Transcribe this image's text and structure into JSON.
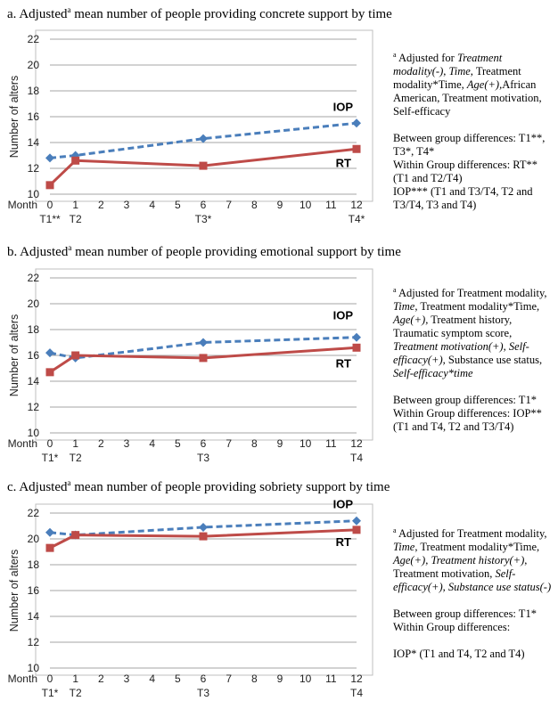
{
  "chart_data": [
    {
      "type": "line",
      "title_prefix": "a. Adjusted",
      "title_sup": "a",
      "title_suffix": " mean number of people providing concrete support by time",
      "ylabel": "Number of alters",
      "xlabel": "Month",
      "ylim": [
        10,
        22
      ],
      "yticks": [
        10,
        12,
        14,
        16,
        18,
        20,
        22
      ],
      "xlim": [
        0,
        12
      ],
      "xticks": [
        0,
        1,
        2,
        3,
        4,
        5,
        6,
        7,
        8,
        9,
        10,
        11,
        12
      ],
      "grid": true,
      "time_labels": [
        {
          "x": 0,
          "label": "T1**"
        },
        {
          "x": 1,
          "label": "T2"
        },
        {
          "x": 6,
          "label": "T3*"
        },
        {
          "x": 12,
          "label": "T4*"
        }
      ],
      "series": [
        {
          "name": "IOP",
          "style": "dashed",
          "color": "#4a7ebb",
          "x": [
            0,
            1,
            6,
            12
          ],
          "y": [
            12.8,
            13.0,
            14.3,
            15.5
          ]
        },
        {
          "name": "RT",
          "style": "solid",
          "color": "#be4b48",
          "x": [
            0,
            1,
            6,
            12
          ],
          "y": [
            10.7,
            12.6,
            12.2,
            13.5
          ]
        }
      ],
      "note_lines": [
        [
          "sup:a",
          " Adjusted for ",
          "i:Treatment modality(-), Time",
          ", Treatment modality*Time, ",
          "i:Age(+),",
          "African American, Treatment motivation, Self-efficacy"
        ],
        [],
        [
          "Between group differences: T1**, T3*, T4*"
        ],
        [
          "Within Group differences: RT** (T1 and T2/T4)"
        ],
        [
          "IOP*** (T1 and T3/T4, T2 and T3/T4, T3 and T4)"
        ]
      ]
    },
    {
      "type": "line",
      "title_prefix": "b. Adjusted",
      "title_sup": "a",
      "title_suffix": " mean number of people providing emotional support by time",
      "ylabel": "Number of alters",
      "xlabel": "Month",
      "ylim": [
        10,
        22
      ],
      "yticks": [
        10,
        12,
        14,
        16,
        18,
        20,
        22
      ],
      "xlim": [
        0,
        12
      ],
      "xticks": [
        0,
        1,
        2,
        3,
        4,
        5,
        6,
        7,
        8,
        9,
        10,
        11,
        12
      ],
      "grid": true,
      "time_labels": [
        {
          "x": 0,
          "label": "T1*"
        },
        {
          "x": 1,
          "label": "T2"
        },
        {
          "x": 6,
          "label": "T3"
        },
        {
          "x": 12,
          "label": "T4"
        }
      ],
      "series": [
        {
          "name": "IOP",
          "style": "dashed",
          "color": "#4a7ebb",
          "x": [
            0,
            1,
            6,
            12
          ],
          "y": [
            16.2,
            15.8,
            17.0,
            17.4
          ]
        },
        {
          "name": "RT",
          "style": "solid",
          "color": "#be4b48",
          "x": [
            0,
            1,
            6,
            12
          ],
          "y": [
            14.7,
            16.0,
            15.8,
            16.6
          ]
        }
      ],
      "note_lines": [
        [
          "sup:a",
          " Adjusted for Treatment modality, ",
          "i:Time",
          ", Treatment modality*Time, ",
          "i:Age(+),",
          " Treatment history, Traumatic symptom score, ",
          "i:Treatment motivation(+)",
          ", ",
          "i:Self-efficacy(+),",
          " Substance use status, ",
          "i:Self-efficacy*time"
        ],
        [],
        [
          "Between group differences: T1*"
        ],
        [
          "Within Group differences: IOP** (T1 and T4, T2 and T3/T4)"
        ]
      ]
    },
    {
      "type": "line",
      "title_prefix": "c. Adjusted",
      "title_sup": "a",
      "title_suffix": " mean number of people providing sobriety support by time",
      "ylabel": "Number of alters",
      "xlabel": "Month",
      "ylim": [
        10,
        22
      ],
      "yticks": [
        10,
        12,
        14,
        16,
        18,
        20,
        22
      ],
      "xlim": [
        0,
        12
      ],
      "xticks": [
        0,
        1,
        2,
        3,
        4,
        5,
        6,
        7,
        8,
        9,
        10,
        11,
        12
      ],
      "grid": true,
      "time_labels": [
        {
          "x": 0,
          "label": "T1*"
        },
        {
          "x": 1,
          "label": "T2"
        },
        {
          "x": 6,
          "label": "T3"
        },
        {
          "x": 12,
          "label": "T4"
        }
      ],
      "series": [
        {
          "name": "IOP",
          "style": "dashed",
          "color": "#4a7ebb",
          "x": [
            0,
            1,
            6,
            12
          ],
          "y": [
            20.5,
            20.3,
            20.9,
            21.4
          ]
        },
        {
          "name": "RT",
          "style": "solid",
          "color": "#be4b48",
          "x": [
            0,
            1,
            6,
            12
          ],
          "y": [
            19.3,
            20.3,
            20.2,
            20.7
          ]
        }
      ],
      "note_lines": [
        [
          "sup:a",
          " Adjusted for Treatment modality, ",
          "i:Time",
          ", Treatment modality*Time, ",
          "i:Age(+), Treatment history(+)",
          ", Treatment motivation, ",
          "i:Self-efficacy(+), Substance use status(-)"
        ],
        [],
        [
          "Between group differences: T1*"
        ],
        [
          "Within Group differences:"
        ],
        [],
        [
          "IOP* (T1 and T4, T2 and T4)"
        ]
      ]
    }
  ]
}
